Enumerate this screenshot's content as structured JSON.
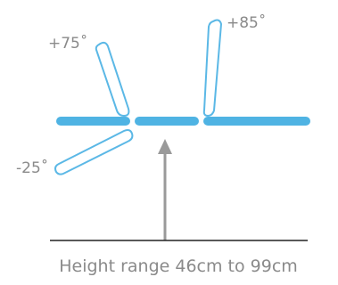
{
  "colors": {
    "segment": "#4fb3e3",
    "outline": "#5bb8e6",
    "arrow": "#9a9a9a",
    "floor": "#222222",
    "text": "#8a8a8a"
  },
  "angles": {
    "back_label": "+85˚",
    "head_label": "+75˚",
    "leg_label": "-25˚"
  },
  "caption": "Height range 46cm to 99cm"
}
